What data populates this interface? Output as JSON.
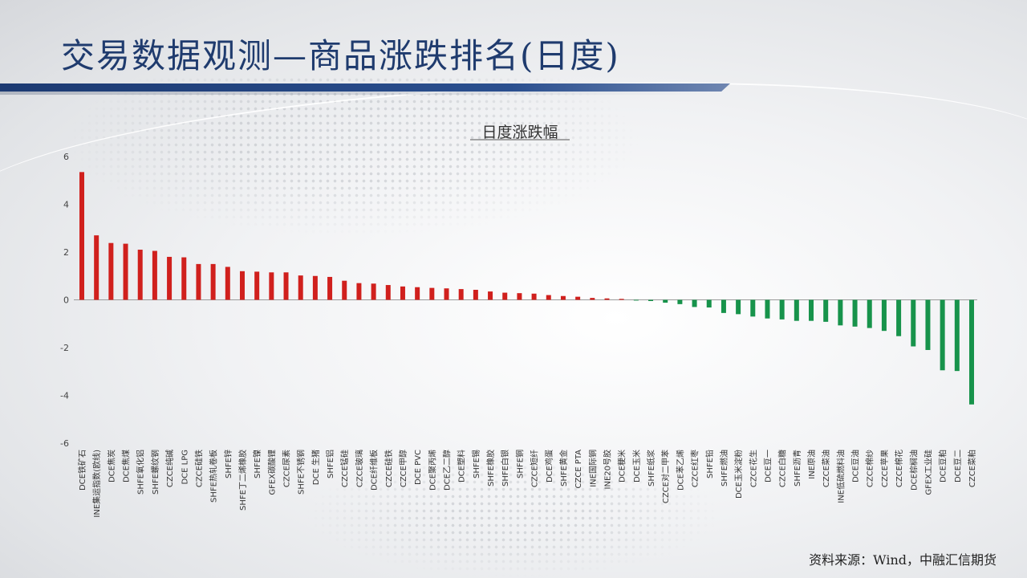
{
  "slide": {
    "title": "交易数据观测—商品涨跌排名(日度)",
    "source": "资料来源：Wind，中融汇信期货"
  },
  "colors": {
    "positive": "#d0201d",
    "negative": "#17934b",
    "title": "#1f3b6e",
    "title_bar": "#1c3a72"
  },
  "chart_data": {
    "type": "bar",
    "title": "日度涨跌幅",
    "ylim": [
      -6,
      6
    ],
    "yticks": [
      6,
      4,
      2,
      0,
      -2,
      -4,
      -6
    ],
    "grid": false,
    "categories": [
      "DCE铁矿石",
      "INE集运指数(欧线)",
      "DCE焦炭",
      "DCE焦煤",
      "SHFE氧化铝",
      "SHFE螺纹钢",
      "CZCE纯碱",
      "DCE LPG",
      "CZCE硅铁",
      "SHFE热轧卷板",
      "SHFE锌",
      "SHFE丁二烯橡胶",
      "SHFE镍",
      "GFEX碳酸锂",
      "CZCE尿素",
      "SHFE不锈钢",
      "DCE 生猪",
      "SHFE铝",
      "CZCE锰硅",
      "CZCE玻璃",
      "DCE纤维板",
      "CZCE硅铁",
      "CZCE甲醇",
      "DCE PVC",
      "DCE聚丙烯",
      "DCE乙二醇",
      "DCE塑料",
      "SHFE锡",
      "SHFE橡胶",
      "SHFE白银",
      "SHFE铜",
      "CZCE短纤",
      "DCE鸡蛋",
      "SHFE黄金",
      "CZCE PTA",
      "INE国际铜",
      "INE20号胶",
      "DCE粳米",
      "DCE玉米",
      "SHFE纸浆",
      "CZCE对二甲苯",
      "DCE苯乙烯",
      "CZCE红枣",
      "SHFE铅",
      "SHFE燃油",
      "DCE玉米淀粉",
      "CZCE花生",
      "DCE豆一",
      "CZCE白糖",
      "SHFE沥青",
      "INE原油",
      "CZCE菜油",
      "INE低硫燃料油",
      "DCE豆油",
      "CZCE棉纱",
      "CZCE苹果",
      "CZCE棉花",
      "DCE棕榈油",
      "GFEX工业硅",
      "DCE豆粕",
      "DCE豆二",
      "CZCE菜粕"
    ],
    "values": [
      5.35,
      2.7,
      2.38,
      2.35,
      2.1,
      2.05,
      1.8,
      1.78,
      1.5,
      1.5,
      1.38,
      1.2,
      1.18,
      1.15,
      1.15,
      1.02,
      1.0,
      0.96,
      0.8,
      0.7,
      0.68,
      0.62,
      0.56,
      0.53,
      0.5,
      0.48,
      0.45,
      0.42,
      0.35,
      0.3,
      0.28,
      0.26,
      0.2,
      0.16,
      0.13,
      0.08,
      0.06,
      0.04,
      -0.03,
      -0.05,
      -0.12,
      -0.18,
      -0.3,
      -0.32,
      -0.55,
      -0.6,
      -0.7,
      -0.78,
      -0.82,
      -0.88,
      -0.88,
      -0.92,
      -1.07,
      -1.12,
      -1.18,
      -1.3,
      -1.52,
      -1.95,
      -2.1,
      -2.95,
      -2.98,
      -4.38
    ]
  }
}
